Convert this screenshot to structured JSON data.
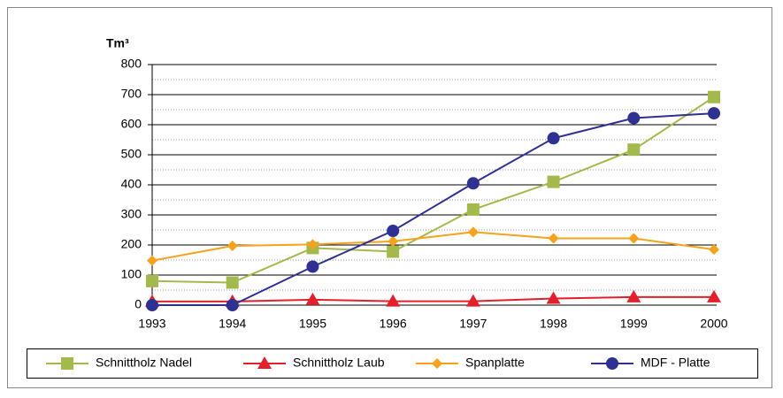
{
  "chart_data": {
    "type": "line",
    "y_label": "Tm³",
    "categories": [
      "1993",
      "1994",
      "1995",
      "1996",
      "1997",
      "1998",
      "1999",
      "2000"
    ],
    "series": [
      {
        "name": "Schnittholz Nadel",
        "color": "#a4b94c",
        "marker": "square",
        "values": [
          80,
          75,
          190,
          178,
          318,
          410,
          517,
          692
        ]
      },
      {
        "name": "Schnittholz Laub",
        "color": "#e3202a",
        "marker": "triangle",
        "values": [
          12,
          12,
          18,
          13,
          13,
          22,
          27,
          27
        ]
      },
      {
        "name": "Spanplatte",
        "color": "#f6a21d",
        "marker": "diamond",
        "values": [
          148,
          197,
          202,
          212,
          243,
          222,
          222,
          185
        ]
      },
      {
        "name": "MDF - Platte",
        "color": "#2e3192",
        "marker": "circle",
        "values": [
          0,
          0,
          128,
          247,
          405,
          555,
          622,
          638
        ]
      }
    ],
    "ylim": [
      0,
      800
    ],
    "yticks": [
      0,
      100,
      200,
      300,
      400,
      500,
      600,
      700,
      800
    ],
    "minor_yticks": [
      50,
      150,
      250,
      350,
      450,
      550,
      650,
      750
    ],
    "grid": true,
    "legend": "bottom"
  }
}
